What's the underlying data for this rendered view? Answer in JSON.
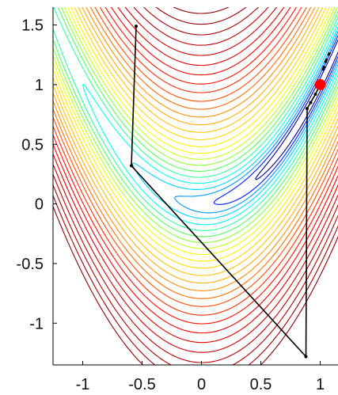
{
  "chart_data": {
    "type": "contour",
    "title": "",
    "xlabel": "",
    "ylabel": "",
    "xlim": [
      -1.25,
      1.15
    ],
    "ylim": [
      -1.35,
      1.65
    ],
    "x_ticks": [
      -1,
      -0.5,
      0,
      0.5,
      1
    ],
    "x_tick_labels": [
      "-1",
      "-0.5",
      "0",
      "0.5",
      "1"
    ],
    "y_ticks": [
      -1,
      -0.5,
      0,
      0.5,
      1,
      1.5
    ],
    "y_tick_labels": [
      "-1",
      "-0.5",
      "0",
      "0.5",
      "1",
      "1.5"
    ],
    "function": "rosenbrock",
    "minimum": {
      "x": 1,
      "y": 1,
      "color": "#ff0000"
    },
    "contour_colormap": [
      "#00008f",
      "#0000ff",
      "#00aaff",
      "#00ffff",
      "#55ff55",
      "#ffff00",
      "#ffaa00",
      "#ff0000",
      "#8b0000"
    ],
    "contour_levels": [
      0.3,
      0.8,
      1.5,
      2.5,
      4,
      6,
      8.5,
      11.5,
      15,
      19,
      24,
      30,
      37,
      45,
      54,
      64,
      75,
      88,
      102,
      118,
      136,
      156,
      178,
      202,
      228,
      256
    ],
    "path": {
      "color": "#000000",
      "points": [
        {
          "x": -0.55,
          "y": 1.49
        },
        {
          "x": -0.59,
          "y": 0.32
        },
        {
          "x": 0.88,
          "y": -1.28
        },
        {
          "x": 0.89,
          "y": 0.8
        },
        {
          "x": 0.92,
          "y": 0.85
        },
        {
          "x": 0.96,
          "y": 0.92
        },
        {
          "x": 1.0,
          "y": 1.0
        }
      ],
      "fine_path": [
        {
          "x": 1.02,
          "y": 1.12
        },
        {
          "x": 1.05,
          "y": 1.2
        },
        {
          "x": 1.08,
          "y": 1.27
        }
      ]
    }
  }
}
